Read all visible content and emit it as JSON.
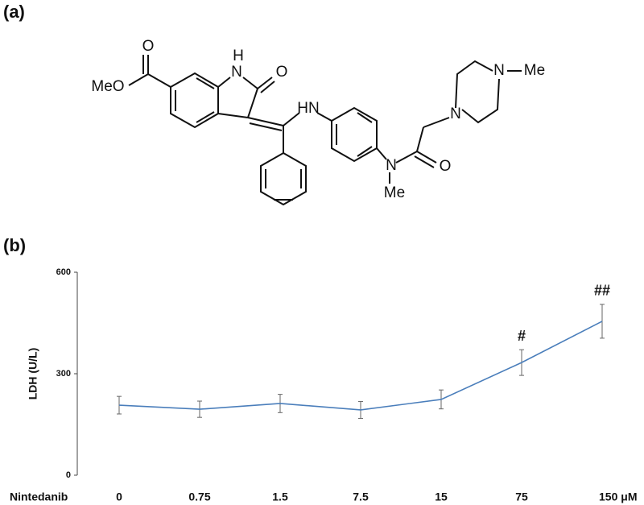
{
  "panels": [
    "(a)",
    "(b)"
  ],
  "structure": {
    "atoms": [
      "O",
      "MeO",
      "H",
      "N",
      "O",
      "HN",
      "N",
      "Me",
      "O",
      "N",
      "N",
      "Me"
    ]
  },
  "chart_data": {
    "type": "line",
    "xlabel": "Nintedanib",
    "ylabel": "LDH (U/L)",
    "categories": [
      "0",
      "0.75",
      "1.5",
      "7.5",
      "15",
      "75",
      "150 μM"
    ],
    "values": [
      207,
      195,
      212,
      193,
      224,
      333,
      455
    ],
    "errors": [
      26,
      24,
      27,
      25,
      28,
      38,
      50
    ],
    "annotations": [
      null,
      null,
      null,
      null,
      null,
      "#",
      "##"
    ],
    "color": "#4a7ebb",
    "ylim": [
      0,
      600
    ],
    "yticks": [
      0,
      300,
      600
    ],
    "grid": false
  }
}
